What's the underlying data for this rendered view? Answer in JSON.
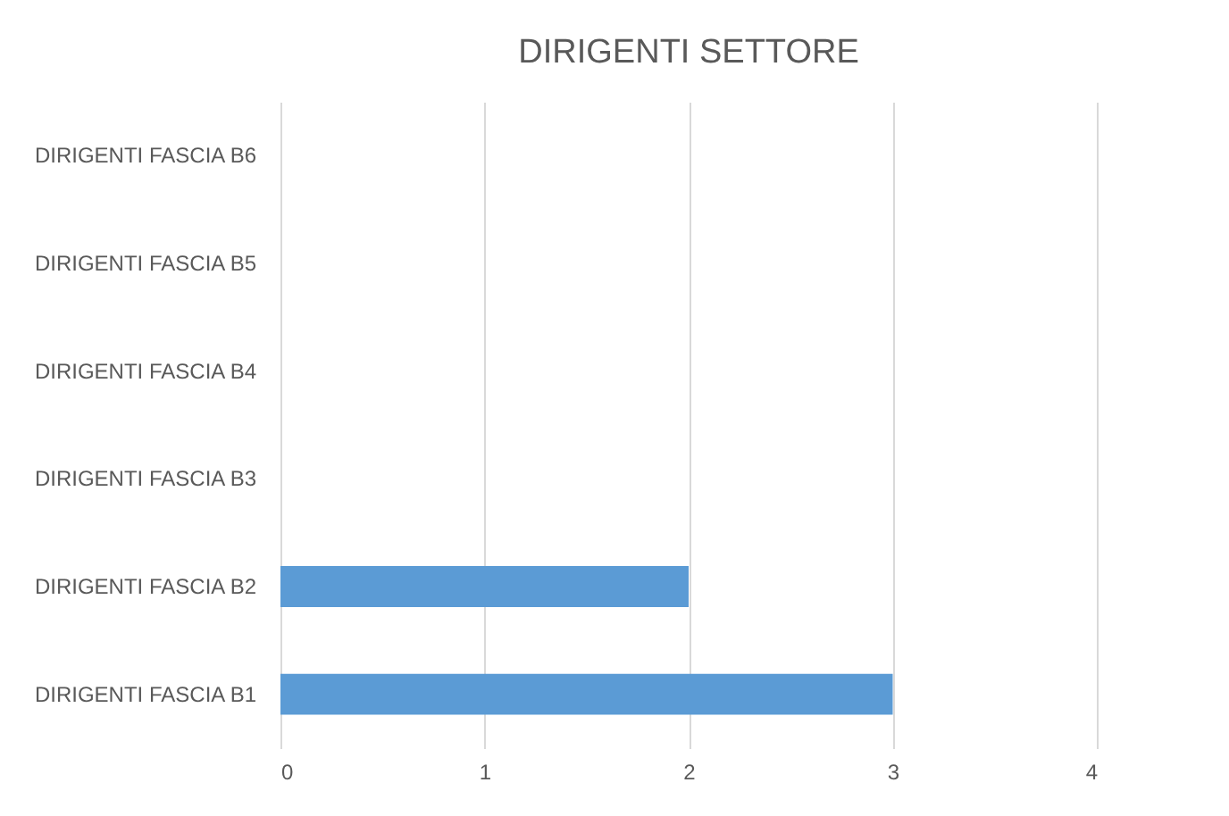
{
  "chart_data": {
    "type": "bar",
    "orientation": "horizontal",
    "title": "DIRIGENTI SETTORE",
    "categories": [
      "DIRIGENTI FASCIA B6",
      "DIRIGENTI FASCIA B5",
      "DIRIGENTI FASCIA B4",
      "DIRIGENTI FASCIA B3",
      "DIRIGENTI FASCIA B2",
      "DIRIGENTI FASCIA B1"
    ],
    "values": [
      0,
      0,
      0,
      0,
      2,
      3
    ],
    "color": "#5b9bd5",
    "xlim": [
      0,
      4
    ],
    "xticks": [
      0,
      1,
      2,
      3,
      4
    ],
    "grid": "x"
  }
}
